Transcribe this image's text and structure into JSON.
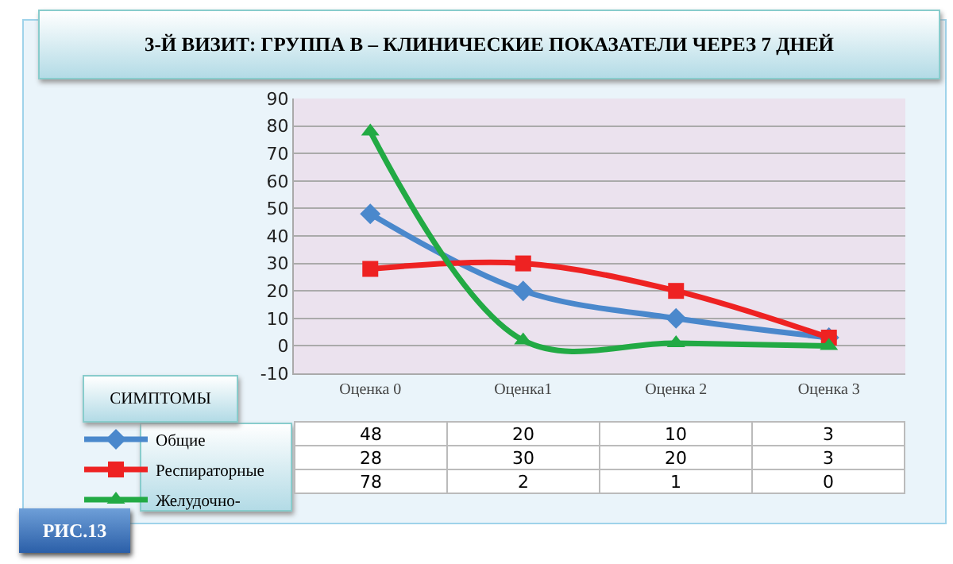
{
  "chart_data": {
    "type": "line",
    "title": "3-Й ВИЗИТ: ГРУППА В – КЛИНИЧЕСКИЕ ПОКАЗАТЕЛИ ЧЕРЕЗ 7 ДНЕЙ",
    "categories": [
      "Оценка 0",
      "Оценка1",
      "Оценка 2",
      "Оценка 3"
    ],
    "series": [
      {
        "name": "Общие",
        "color": "#4a88cc",
        "marker": "diamond",
        "values": [
          48,
          20,
          10,
          3
        ]
      },
      {
        "name": "Респираторные",
        "color": "#ee2222",
        "marker": "square",
        "values": [
          28,
          30,
          20,
          3
        ]
      },
      {
        "name": "Желудочно-",
        "color": "#22aa44",
        "marker": "triangle",
        "values": [
          78,
          2,
          1,
          0
        ]
      }
    ],
    "ylim": [
      -10,
      90
    ],
    "yticks": [
      -10,
      0,
      10,
      20,
      30,
      40,
      50,
      60,
      70,
      80,
      90
    ],
    "grid": "y",
    "legend": "bottom left",
    "data_labels": true,
    "annotations": [
      "СИМПТОМЫ",
      "РИС.13"
    ]
  }
}
